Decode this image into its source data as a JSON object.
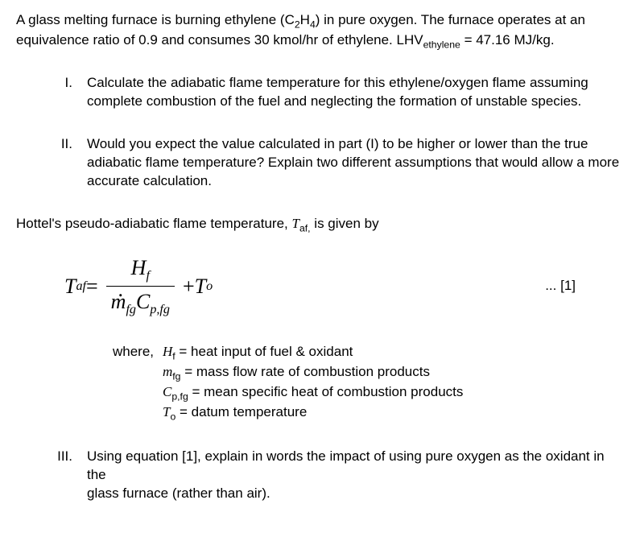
{
  "intro": {
    "l1a": "A glass melting furnace is burning ethylene (C",
    "l1b": "H",
    "l1c": ") in pure oxygen. The furnace operates at an",
    "l2a": "equivalence ratio of 0.9 and consumes 30 kmol/hr of ethylene. LHV",
    "l2b": " = 47.16 MJ/kg.",
    "sub2": "2",
    "sub4": "4",
    "subeth": "ethylene"
  },
  "q1": {
    "num": "I.",
    "l1": "Calculate the adiabatic flame temperature for this ethylene/oxygen flame assuming",
    "l2": "complete combustion of the fuel and neglecting the formation of unstable species."
  },
  "q2": {
    "num": "II.",
    "l1": "Would you expect the value calculated in part (I) to be higher or lower than the true",
    "l2": "adiabatic flame temperature? Explain two different assumptions that would allow a more",
    "l3": "accurate calculation."
  },
  "hottel": {
    "a": "Hottel's pseudo-adiabatic flame temperature, ",
    "var": "T",
    "sub": "af,",
    "b": " is given by"
  },
  "eq": {
    "lhs_T": "T",
    "lhs_sub": "af",
    "eq": " = ",
    "num_H": "H",
    "num_sub": "f",
    "den_m": "m",
    "den_sub1": "fg",
    "den_C": "C",
    "den_sub2": "p,fg",
    "plus": " + ",
    "rhs_T": "T",
    "rhs_sub": "o",
    "ref": "... [1]"
  },
  "where": {
    "lead": "where,",
    "r1a": "H",
    "r1s": "f",
    "r1b": " = heat input of fuel & oxidant",
    "r2a": "m",
    "r2s": "fg",
    "r2b": " = mass flow rate of combustion products",
    "r3a": "C",
    "r3s": "p,fg",
    "r3b": " = mean specific heat of combustion products",
    "r4a": "T",
    "r4s": "o",
    "r4b": " = datum temperature"
  },
  "q3": {
    "num": "III.",
    "l1": "Using equation [1], explain in words the impact of using pure oxygen as the oxidant in the",
    "l2": "glass furnace (rather than air)."
  }
}
